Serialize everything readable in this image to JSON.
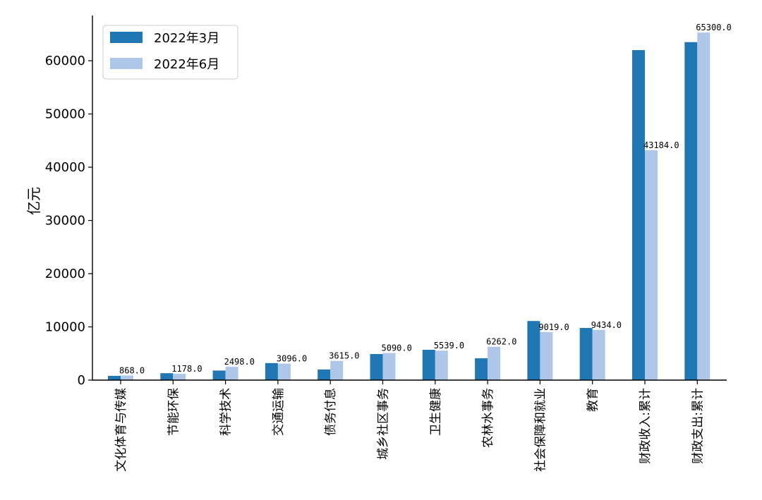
{
  "chart_data": {
    "type": "bar",
    "ylabel": "亿元",
    "xlabel": "",
    "ylim": [
      0,
      68500
    ],
    "yticks": [
      0,
      10000,
      20000,
      30000,
      40000,
      50000,
      60000
    ],
    "categories": [
      "文化体育与传媒",
      "节能环保",
      "科学技术",
      "交通运输",
      "债务付息",
      "城乡社区事务",
      "卫生健康",
      "农林水事务",
      "社会保障和就业",
      "教育",
      "财政收入:累计",
      "财政支出:累计"
    ],
    "series": [
      {
        "name": "2022年3月",
        "color": "#1f77b4",
        "values": [
          800,
          1300,
          1800,
          3200,
          2000,
          4900,
          5700,
          4100,
          11100,
          9800,
          62000,
          63500
        ]
      },
      {
        "name": "2022年6月",
        "color": "#aec7e8",
        "values": [
          868,
          1178,
          2498,
          3096,
          3615,
          5090,
          5539,
          6262,
          9019,
          9434,
          43184,
          65300
        ]
      }
    ],
    "data_labels": [
      "868.0",
      "1178.0",
      "2498.0",
      "3096.0",
      "3615.0",
      "5090.0",
      "5539.0",
      "6262.0",
      "9019.0",
      "9434.0",
      "43184.0",
      "65300.0"
    ],
    "legend_position": "top-left",
    "grid": false
  }
}
